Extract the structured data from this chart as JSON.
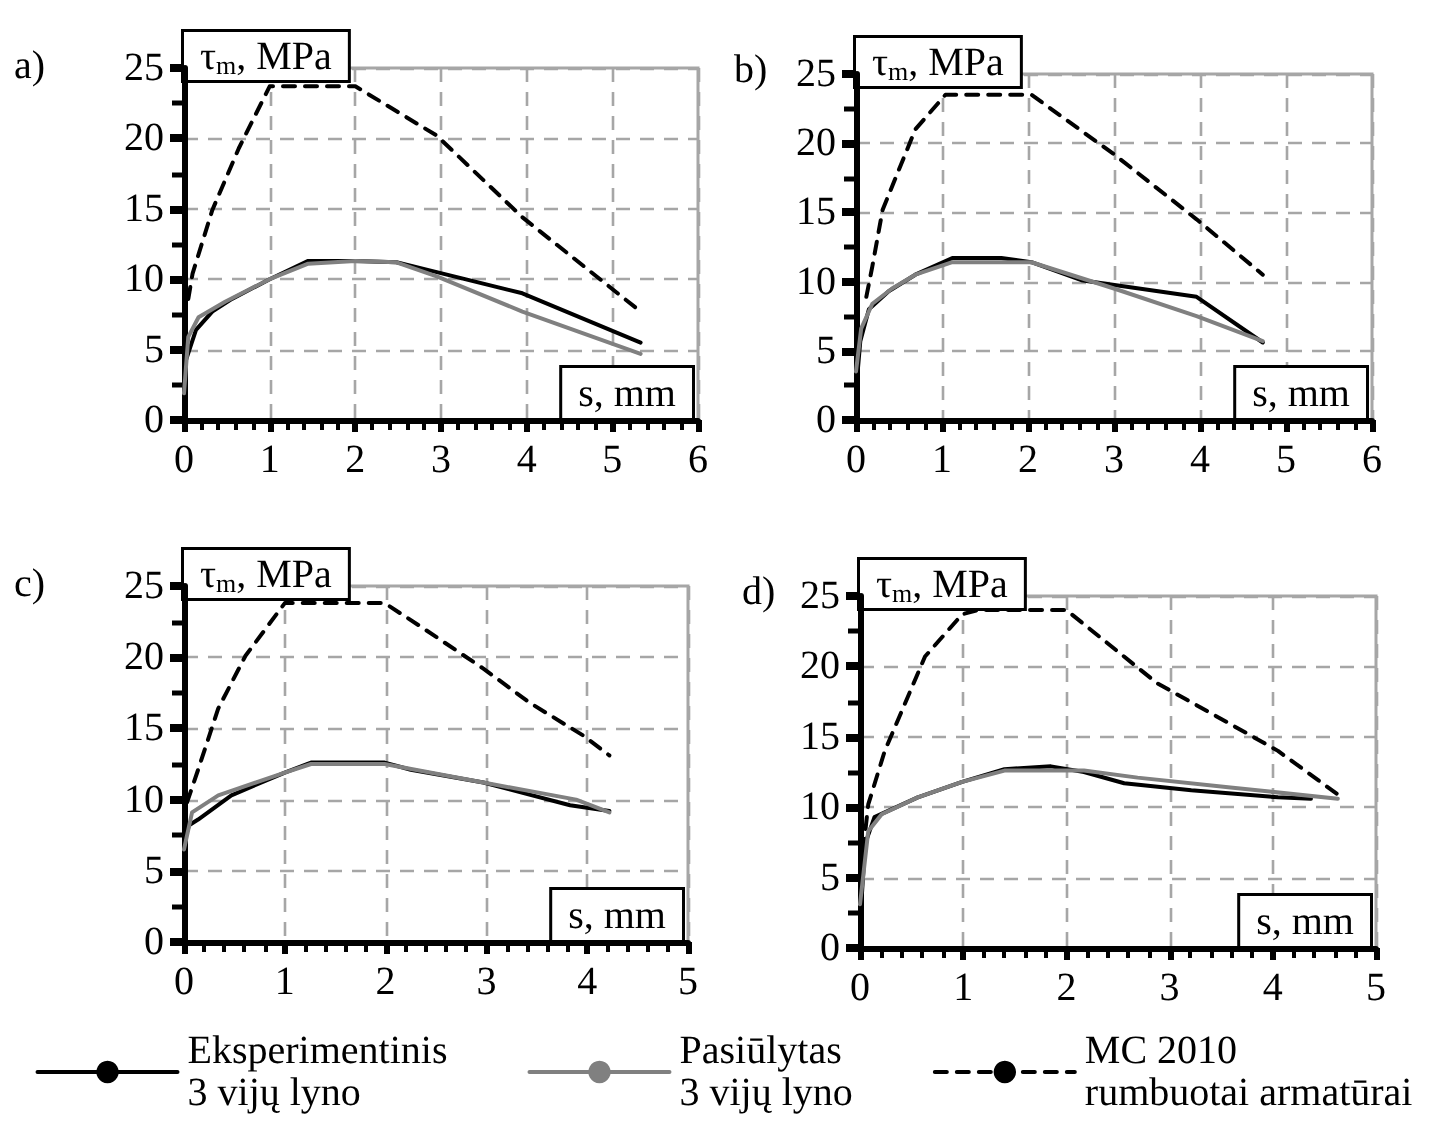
{
  "chart_data": [
    {
      "type": "line",
      "title": "a)",
      "xlabel": "s, mm",
      "ylabel": "τ$_{m}$, MPa",
      "xlim": [
        0,
        6
      ],
      "xticks": [
        0,
        1,
        2,
        3,
        4,
        5,
        6
      ],
      "ylim": [
        0,
        25
      ],
      "yticks": [
        0,
        5,
        10,
        15,
        20,
        25
      ],
      "grid": true,
      "legend": false,
      "series": [
        {
          "color": "#000000",
          "line_style": "solid",
          "x": [
            0,
            0.02,
            0.14,
            0.33,
            0.56,
            1,
            1.45,
            2,
            2.48,
            2.95,
            3.95,
            5.33
          ],
          "values": [
            2.8,
            4.2,
            6.4,
            7.7,
            8.6,
            10,
            11.3,
            11.3,
            11.2,
            10.5,
            9,
            5.5
          ]
        },
        {
          "color": "#808080",
          "line_style": "solid",
          "x": [
            0,
            0.05,
            0.17,
            0.48,
            1,
            1.45,
            2,
            2.48,
            2.95,
            3.95,
            5.33
          ],
          "values": [
            1.9,
            5.9,
            7.3,
            8.4,
            10,
            11.1,
            11.3,
            11.2,
            10.2,
            7.7,
            4.7
          ]
        },
        {
          "color": "#000000",
          "line_style": "dashed",
          "x": [
            0.05,
            0.1,
            0.33,
            0.64,
            1,
            2,
            2.95,
            3.95,
            5.33
          ],
          "values": [
            8.6,
            10.4,
            14.9,
            19.3,
            23.7,
            23.7,
            20.2,
            14.4,
            7.7
          ]
        }
      ]
    },
    {
      "type": "line",
      "title": "b)",
      "xlabel": "s, mm",
      "ylabel": "τ$_{m}$, MPa",
      "xlim": [
        0,
        6
      ],
      "xticks": [
        0,
        1,
        2,
        3,
        4,
        5,
        6
      ],
      "ylim": [
        0,
        25
      ],
      "yticks": [
        0,
        5,
        10,
        15,
        20,
        25
      ],
      "grid": true,
      "legend": false,
      "series": [
        {
          "color": "#000000",
          "line_style": "solid",
          "x": [
            0,
            0.05,
            0.15,
            0.38,
            0.69,
            1.12,
            1.69,
            2.04,
            2.62,
            3.96,
            4.73
          ],
          "values": [
            2.1,
            5.7,
            8,
            9.3,
            10.5,
            11.7,
            11.7,
            11.4,
            10.1,
            8.9,
            5.6
          ]
        },
        {
          "color": "#808080",
          "line_style": "solid",
          "x": [
            0,
            0.06,
            0.19,
            0.42,
            0.69,
            1.12,
            2.04,
            3,
            3.96,
            4.73
          ],
          "values": [
            3.5,
            6.6,
            8.4,
            9.5,
            10.5,
            11.4,
            11.4,
            9.5,
            7.5,
            5.7
          ]
        },
        {
          "color": "#000000",
          "line_style": "dashed",
          "x": [
            0.12,
            0.19,
            0.31,
            0.69,
            1.04,
            2.04,
            3,
            3.96,
            4.73
          ],
          "values": [
            8.9,
            11.1,
            15.2,
            21,
            23.5,
            23.5,
            19.2,
            14.5,
            10.5
          ]
        }
      ]
    },
    {
      "type": "line",
      "title": "c)",
      "xlabel": "s, mm",
      "ylabel": "τ$_{m}$, MPa",
      "xlim": [
        0,
        5
      ],
      "xticks": [
        0,
        1,
        2,
        3,
        4,
        5
      ],
      "ylim": [
        0,
        25
      ],
      "yticks": [
        0,
        5,
        10,
        15,
        20,
        25
      ],
      "grid": true,
      "legend": false,
      "series": [
        {
          "color": "#000000",
          "line_style": "solid",
          "x": [
            0,
            0.05,
            0.14,
            0.47,
            1,
            1.26,
            1.99,
            2.25,
            2.97,
            3.83,
            4.22
          ],
          "values": [
            7,
            8.2,
            8.6,
            10.3,
            11.9,
            12.6,
            12.6,
            12.1,
            11.2,
            9.6,
            9.2
          ]
        },
        {
          "color": "#808080",
          "line_style": "solid",
          "x": [
            0,
            0.08,
            0.34,
            1,
            1.26,
            1.99,
            2.97,
            3.89,
            4.22
          ],
          "values": [
            6.5,
            9.1,
            10.3,
            11.9,
            12.5,
            12.5,
            11.2,
            10,
            9.1
          ]
        },
        {
          "color": "#000000",
          "line_style": "dashed",
          "x": [
            0.03,
            0.14,
            0.34,
            0.61,
            1,
            1.99,
            2.38,
            2.97,
            3.43,
            3.96,
            4.22
          ],
          "values": [
            9.8,
            12.1,
            16.4,
            20.1,
            23.8,
            23.8,
            22,
            19.2,
            16.8,
            14.5,
            13.1
          ]
        }
      ]
    },
    {
      "type": "line",
      "title": "d)",
      "xlabel": "s, mm",
      "ylabel": "τ$_{m}$, MPa",
      "xlim": [
        0,
        5
      ],
      "xticks": [
        0,
        1,
        2,
        3,
        4,
        5
      ],
      "ylim": [
        0,
        25
      ],
      "yticks": [
        0,
        5,
        10,
        15,
        20,
        25
      ],
      "grid": true,
      "legend": "bottom",
      "series": [
        {
          "name": "Eksperimentinis\n3 vijų lyno",
          "color": "#000000",
          "line_style": "solid",
          "x": [
            0,
            0.05,
            0.14,
            0.56,
            0.99,
            1.4,
            1.85,
            2.17,
            2.56,
            3.21,
            4.05,
            4.37
          ],
          "values": [
            1.7,
            7.4,
            9.3,
            10.7,
            11.8,
            12.7,
            12.9,
            12.5,
            11.7,
            11.2,
            10.7,
            10.6
          ]
        },
        {
          "name": "Pasiūlytas\n3 vijų lyno",
          "color": "#808080",
          "line_style": "solid",
          "x": [
            0,
            0.08,
            0.21,
            0.56,
            0.99,
            1.4,
            2.17,
            2.69,
            3.59,
            4.63
          ],
          "values": [
            3.1,
            8.3,
            9.5,
            10.7,
            11.8,
            12.6,
            12.6,
            12.1,
            11.4,
            10.6
          ]
        },
        {
          "name": "MC 2010\nrumbuotai armatūrai",
          "color": "#000000",
          "line_style": "dashed",
          "x": [
            0.03,
            0.08,
            0.24,
            0.63,
            0.99,
            1.14,
            2,
            2.88,
            3.59,
            4.05,
            4.63
          ],
          "values": [
            6.9,
            10.2,
            14,
            20.7,
            23.7,
            24,
            24,
            18.8,
            15.9,
            14,
            10.9
          ]
        }
      ]
    }
  ]
}
